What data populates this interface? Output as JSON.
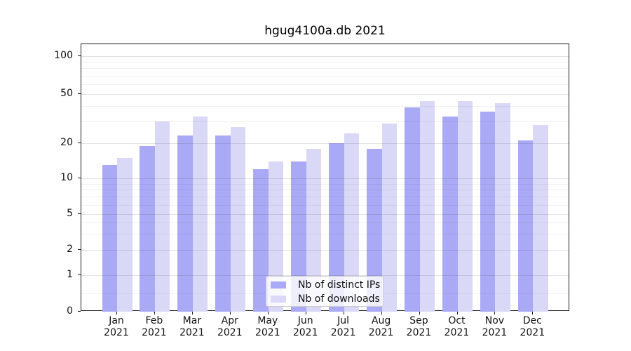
{
  "chart_data": {
    "type": "bar",
    "title": "hgug4100a.db 2021",
    "categories": [
      "Jan",
      "Feb",
      "Mar",
      "Apr",
      "May",
      "Jun",
      "Jul",
      "Aug",
      "Sep",
      "Oct",
      "Nov",
      "Dec"
    ],
    "x_year_label": "2021",
    "series": [
      {
        "name": "Nb of distinct IPs",
        "color": "#a9a9f5",
        "values": [
          13,
          19,
          23,
          23,
          12,
          14,
          20,
          18,
          39,
          33,
          36,
          21
        ]
      },
      {
        "name": "Nb of downloads",
        "color": "#d9d9f7",
        "values": [
          15,
          30,
          33,
          27,
          14,
          18,
          24,
          29,
          44,
          44,
          42,
          28
        ]
      }
    ],
    "ylabel": "",
    "xlabel": "",
    "yscale": "symlog",
    "yticks": [
      0,
      1,
      2,
      5,
      10,
      20,
      50,
      100
    ],
    "ytick_labels": [
      "0",
      "1",
      "2",
      "5",
      "10",
      "20",
      "50",
      "100"
    ],
    "minor_gridlines": [
      0.5,
      3,
      4,
      6,
      7,
      8,
      9,
      30,
      40,
      60,
      70,
      80,
      90
    ],
    "ylim": [
      0,
      125
    ],
    "grid": "on",
    "grid_over_bars": true,
    "legend_position": "lower center",
    "bar_group_mode": "paired side-by-side, centered on month tick"
  }
}
